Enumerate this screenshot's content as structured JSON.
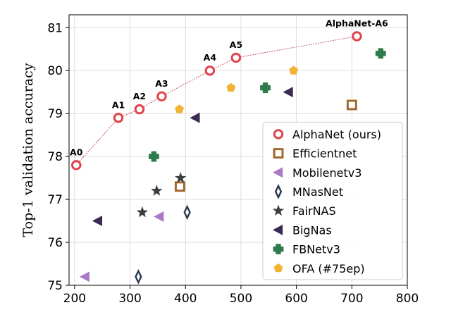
{
  "chart_data": {
    "type": "scatter",
    "title": "",
    "xlabel": "",
    "ylabel": "Top-1 validation accuracy",
    "xlim": [
      190,
      800
    ],
    "ylim": [
      75,
      81.3
    ],
    "xticks": [
      200,
      300,
      400,
      500,
      600,
      700,
      800
    ],
    "yticks": [
      75,
      76,
      77,
      78,
      79,
      80,
      81
    ],
    "grid": true,
    "legend_position": "lower-right",
    "series": [
      {
        "name": "AlphaNet (ours)",
        "marker": "circle-open",
        "color": "#e0404a",
        "connect": true,
        "line_color": "#c85560",
        "points": [
          {
            "x": 203,
            "y": 77.8,
            "label": "A0"
          },
          {
            "x": 279,
            "y": 78.9,
            "label": "A1"
          },
          {
            "x": 317,
            "y": 79.1,
            "label": "A2"
          },
          {
            "x": 357,
            "y": 79.4,
            "label": "A3"
          },
          {
            "x": 444,
            "y": 80.0,
            "label": "A4"
          },
          {
            "x": 491,
            "y": 80.3,
            "label": "A5"
          },
          {
            "x": 709,
            "y": 80.8,
            "label": "AlphaNet-A6"
          }
        ]
      },
      {
        "name": "Efficientnet",
        "marker": "square-open",
        "color": "#a0662a",
        "points": [
          {
            "x": 390,
            "y": 77.3
          },
          {
            "x": 700,
            "y": 79.2
          }
        ]
      },
      {
        "name": "Mobilenetv3",
        "marker": "triangle-left",
        "color": "#a97bc4",
        "points": [
          {
            "x": 219,
            "y": 75.2
          },
          {
            "x": 353,
            "y": 76.6
          }
        ]
      },
      {
        "name": "MNasNet",
        "marker": "thin-diamond",
        "color": "#27384f",
        "points": [
          {
            "x": 315,
            "y": 75.2
          },
          {
            "x": 403,
            "y": 76.7
          }
        ]
      },
      {
        "name": "FairNAS",
        "marker": "star",
        "color": "#3d3d3d",
        "points": [
          {
            "x": 322,
            "y": 76.7
          },
          {
            "x": 348,
            "y": 77.2
          },
          {
            "x": 391,
            "y": 77.5
          }
        ]
      },
      {
        "name": "BigNas",
        "marker": "triangle-left",
        "color": "#3a2b52",
        "points": [
          {
            "x": 242,
            "y": 76.5
          },
          {
            "x": 418,
            "y": 78.9
          },
          {
            "x": 586,
            "y": 79.5
          }
        ]
      },
      {
        "name": "FBNetv3",
        "marker": "plus-filled",
        "color": "#2e7a4a",
        "points": [
          {
            "x": 343,
            "y": 78.0
          },
          {
            "x": 544,
            "y": 79.6
          },
          {
            "x": 752,
            "y": 80.4
          }
        ]
      },
      {
        "name": "OFA (#75ep)",
        "marker": "pentagon",
        "color": "#f2b233",
        "points": [
          {
            "x": 389,
            "y": 79.1
          },
          {
            "x": 482,
            "y": 79.6
          },
          {
            "x": 595,
            "y": 80.0
          }
        ]
      }
    ]
  }
}
